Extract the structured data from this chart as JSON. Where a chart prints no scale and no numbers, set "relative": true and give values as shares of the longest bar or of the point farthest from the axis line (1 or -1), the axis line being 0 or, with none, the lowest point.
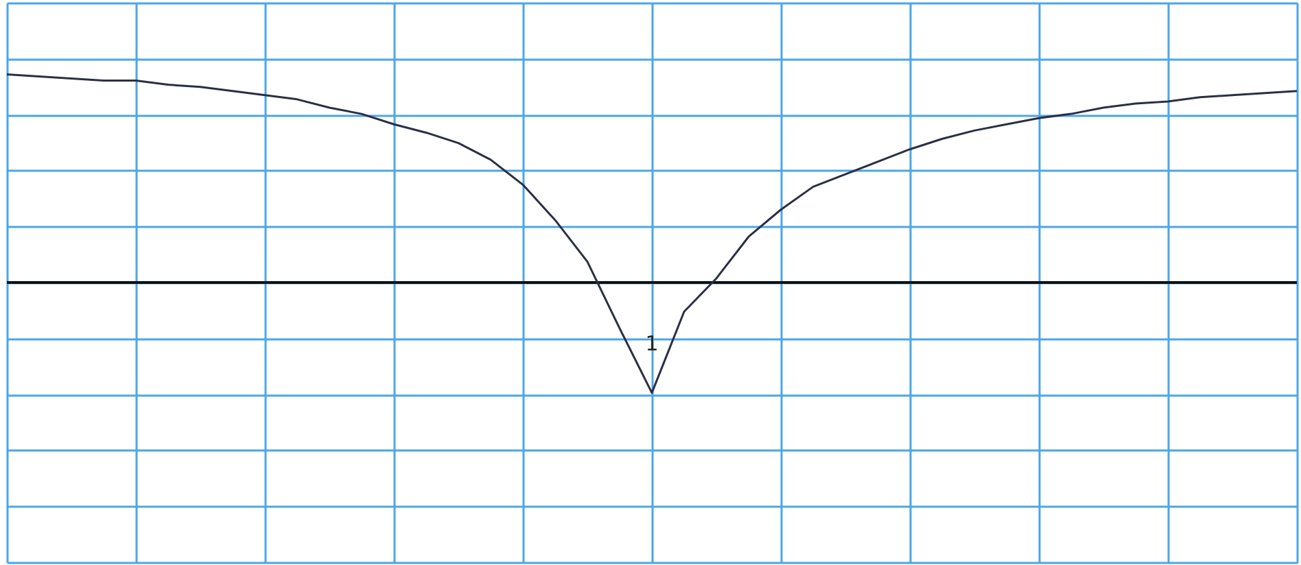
{
  "chart_data": {
    "type": "line",
    "relative": true,
    "grid": true,
    "tick_labels": false,
    "marker": "none",
    "line_style": "solid",
    "categories": [
      null,
      null,
      null,
      null,
      null,
      null,
      null,
      null,
      null,
      null,
      null,
      null,
      null,
      null,
      null,
      null,
      null,
      null,
      null,
      null,
      null,
      null,
      null,
      null,
      null,
      null,
      null,
      null,
      null,
      null,
      null,
      null,
      null,
      null,
      null,
      null,
      null,
      null,
      null,
      null,
      null
    ],
    "series": [
      {
        "color": "#2a2f45",
        "values": [
          1.0,
          0.99,
          0.98,
          0.97,
          0.97,
          0.95,
          0.94,
          0.92,
          0.9,
          0.88,
          0.84,
          0.81,
          0.76,
          0.72,
          0.67,
          0.59,
          0.47,
          0.3,
          0.1,
          -0.22,
          -0.53,
          -0.14,
          0.02,
          0.22,
          0.35,
          0.46,
          0.52,
          0.58,
          0.64,
          0.69,
          0.73,
          0.76,
          0.79,
          0.81,
          0.84,
          0.86,
          0.87,
          0.89,
          0.9,
          0.91,
          0.92
        ]
      }
    ],
    "annotations": [
      {
        "text": "1",
        "y": -0.53
      }
    ]
  }
}
